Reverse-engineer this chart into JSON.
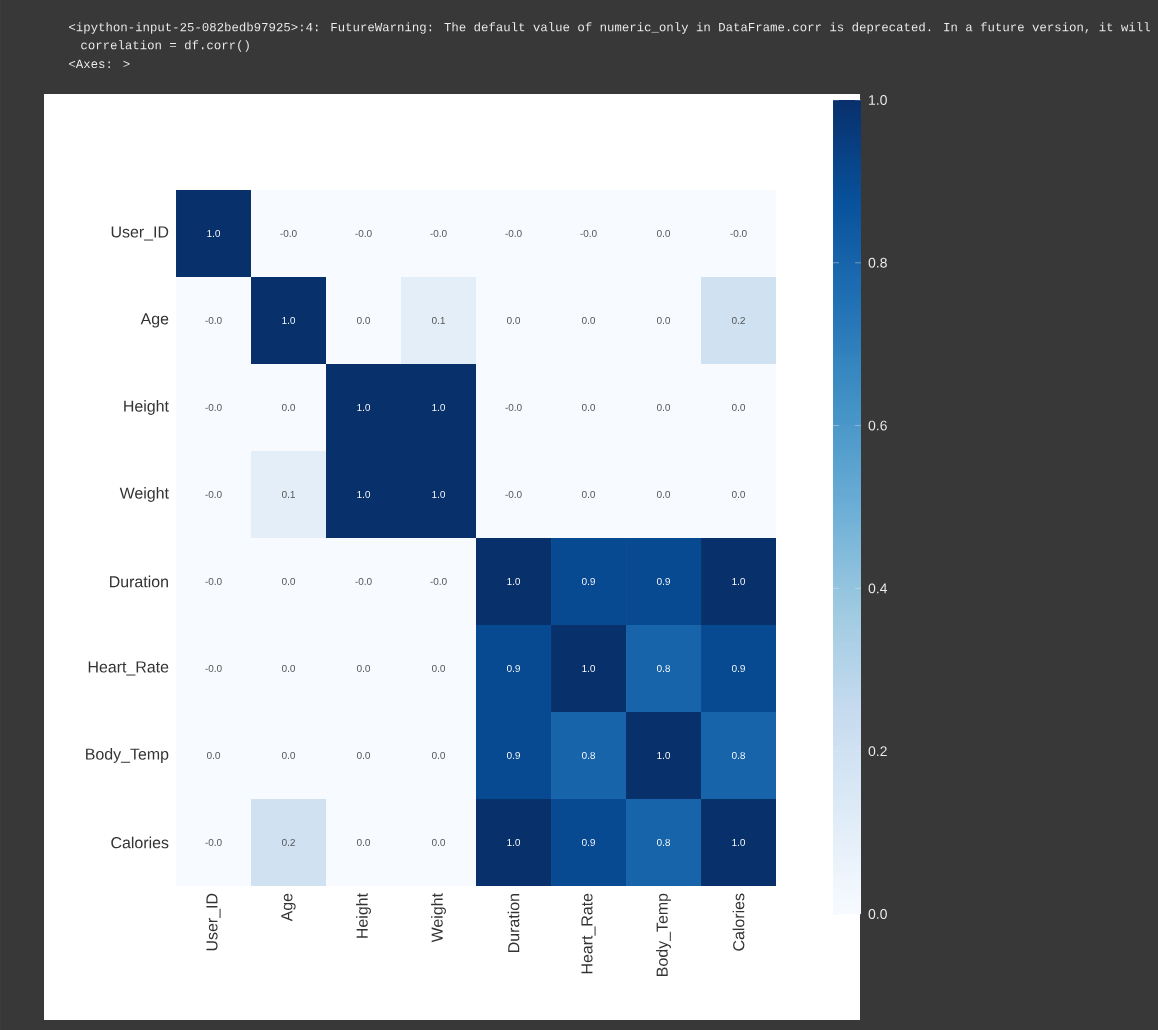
{
  "chart_data": {
    "type": "heatmap",
    "annotations": [
      "<ipython-input-25-082bedb97925>:4: FutureWarning: The default value of numeric_only in DataFrame.corr is deprecated. In a future version, it will",
      "correlation = df.corr()",
      "<Axes: >"
    ],
    "categories": [
      "User_ID",
      "Age",
      "Height",
      "Weight",
      "Duration",
      "Heart_Rate",
      "Body_Temp",
      "Calories"
    ],
    "y_categories": [
      "User_ID",
      "Age",
      "Height",
      "Weight",
      "Duration",
      "Heart_Rate",
      "Body_Temp",
      "Calories"
    ],
    "cells": [
      [
        1.0,
        0.0,
        0.0,
        0.0,
        0.0,
        0.0,
        0.0,
        0.0
      ],
      [
        0.0,
        1.0,
        0.0,
        0.1,
        0.0,
        0.0,
        0.0,
        0.2
      ],
      [
        0.0,
        0.0,
        1.0,
        1.0,
        0.0,
        0.0,
        0.0,
        0.0
      ],
      [
        0.0,
        0.1,
        1.0,
        1.0,
        0.0,
        0.0,
        0.0,
        0.0
      ],
      [
        0.0,
        0.0,
        0.0,
        0.0,
        1.0,
        0.9,
        0.9,
        1.0
      ],
      [
        0.0,
        0.0,
        0.0,
        0.0,
        0.9,
        1.0,
        0.8,
        0.9
      ],
      [
        0.0,
        0.0,
        0.0,
        0.0,
        0.9,
        0.8,
        1.0,
        0.8
      ],
      [
        0.0,
        0.2,
        0.0,
        0.0,
        1.0,
        0.9,
        0.8,
        1.0
      ]
    ],
    "cell_labels": [
      [
        "1.0",
        "-0.0",
        "-0.0",
        "-0.0",
        "-0.0",
        "-0.0",
        "0.0",
        "-0.0"
      ],
      [
        "-0.0",
        "1.0",
        "0.0",
        "0.1",
        "0.0",
        "0.0",
        "0.0",
        "0.2"
      ],
      [
        "-0.0",
        "0.0",
        "1.0",
        "1.0",
        "-0.0",
        "0.0",
        "0.0",
        "0.0"
      ],
      [
        "-0.0",
        "0.1",
        "1.0",
        "1.0",
        "-0.0",
        "0.0",
        "0.0",
        "0.0"
      ],
      [
        "-0.0",
        "0.0",
        "-0.0",
        "-0.0",
        "1.0",
        "0.9",
        "0.9",
        "1.0"
      ],
      [
        "-0.0",
        "0.0",
        "0.0",
        "0.0",
        "0.9",
        "1.0",
        "0.8",
        "0.9"
      ],
      [
        "0.0",
        "0.0",
        "0.0",
        "0.0",
        "0.9",
        "0.8",
        "1.0",
        "0.8"
      ],
      [
        "-0.0",
        "0.2",
        "0.0",
        "0.0",
        "1.0",
        "0.9",
        "0.8",
        "1.0"
      ]
    ],
    "clim": [
      0,
      1
    ],
    "cticks": [
      {
        "value": 0,
        "label": "0.0"
      },
      {
        "value": 0.2,
        "label": "0.2"
      },
      {
        "value": 0.4,
        "label": "0.4"
      },
      {
        "value": 0.6,
        "label": "0.6"
      },
      {
        "value": 0.8,
        "label": "0.8"
      },
      {
        "value": 1,
        "label": "1.0"
      }
    ]
  }
}
